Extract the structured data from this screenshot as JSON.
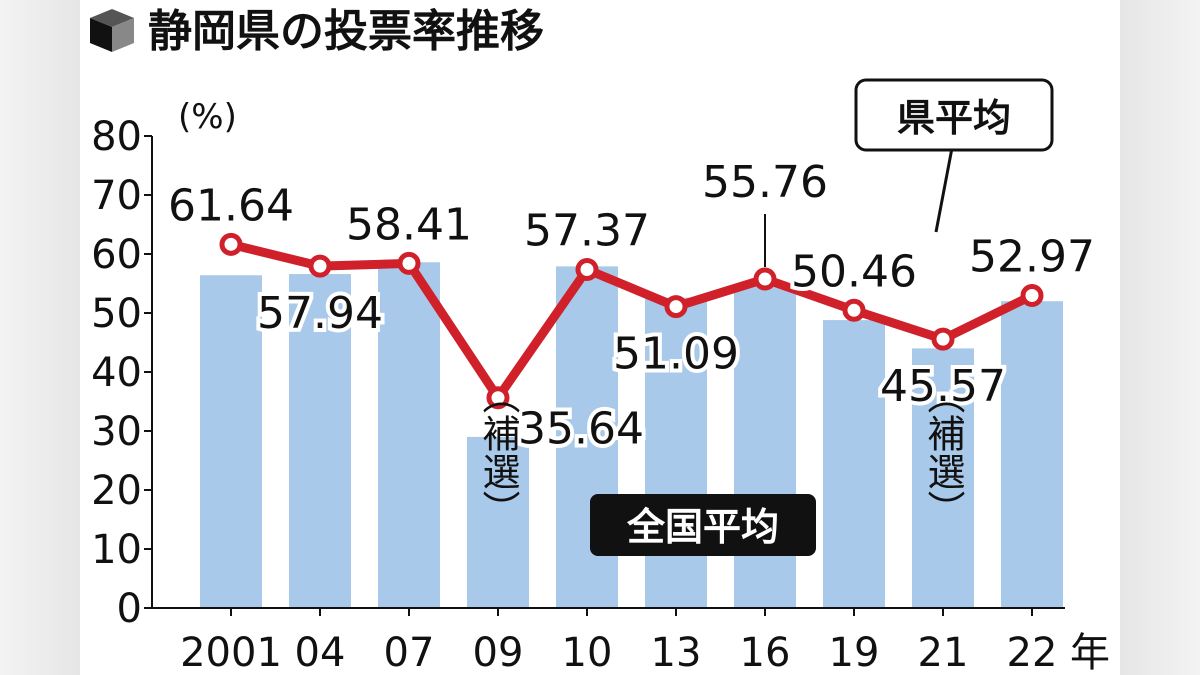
{
  "title": "静岡県の投票率推移",
  "chart_data": {
    "type": "bar",
    "title": "静岡県の投票率推移",
    "ylabel": "(%)",
    "xlabel": "年",
    "ylim": [
      0,
      80
    ],
    "yticks": [
      0,
      10,
      20,
      30,
      40,
      50,
      60,
      70,
      80
    ],
    "categories": [
      "2001",
      "04",
      "07",
      "09",
      "10",
      "13",
      "16",
      "19",
      "21",
      "22"
    ],
    "series": [
      {
        "name": "全国平均",
        "type": "bar",
        "color": "#a9c9ea",
        "values": [
          56.4,
          56.6,
          58.6,
          29.0,
          57.9,
          52.6,
          54.7,
          48.8,
          44.0,
          52.0
        ]
      },
      {
        "name": "県平均",
        "type": "line",
        "color": "#d0212a",
        "values": [
          61.64,
          57.94,
          58.41,
          35.64,
          57.37,
          51.09,
          55.76,
          50.46,
          45.57,
          52.97
        ],
        "labels": [
          "61.64",
          "57.94",
          "58.41",
          "35.64",
          "57.37",
          "51.09",
          "55.76",
          "50.46",
          "45.57",
          "52.97"
        ]
      }
    ],
    "annotations": [
      {
        "category": "09",
        "text": "（補選）"
      },
      {
        "category": "21",
        "text": "（補選）"
      }
    ],
    "grid": false
  }
}
